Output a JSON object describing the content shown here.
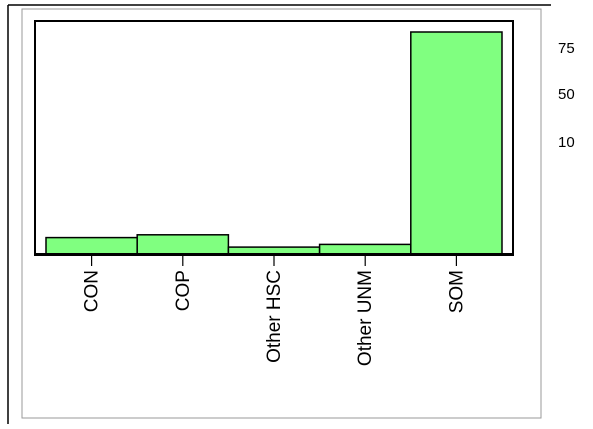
{
  "chart_data": {
    "type": "bar",
    "categories": [
      "CON",
      "COP",
      "Other HSC",
      "Other UNM",
      "SOM"
    ],
    "values": [
      6,
      7,
      2.5,
      3.5,
      81
    ],
    "ylim": [
      0,
      85
    ],
    "grid": false,
    "bar_color": "#80ff80",
    "bar_edge_color": "#000000"
  },
  "side_labels": [
    "75",
    "50",
    "10"
  ]
}
